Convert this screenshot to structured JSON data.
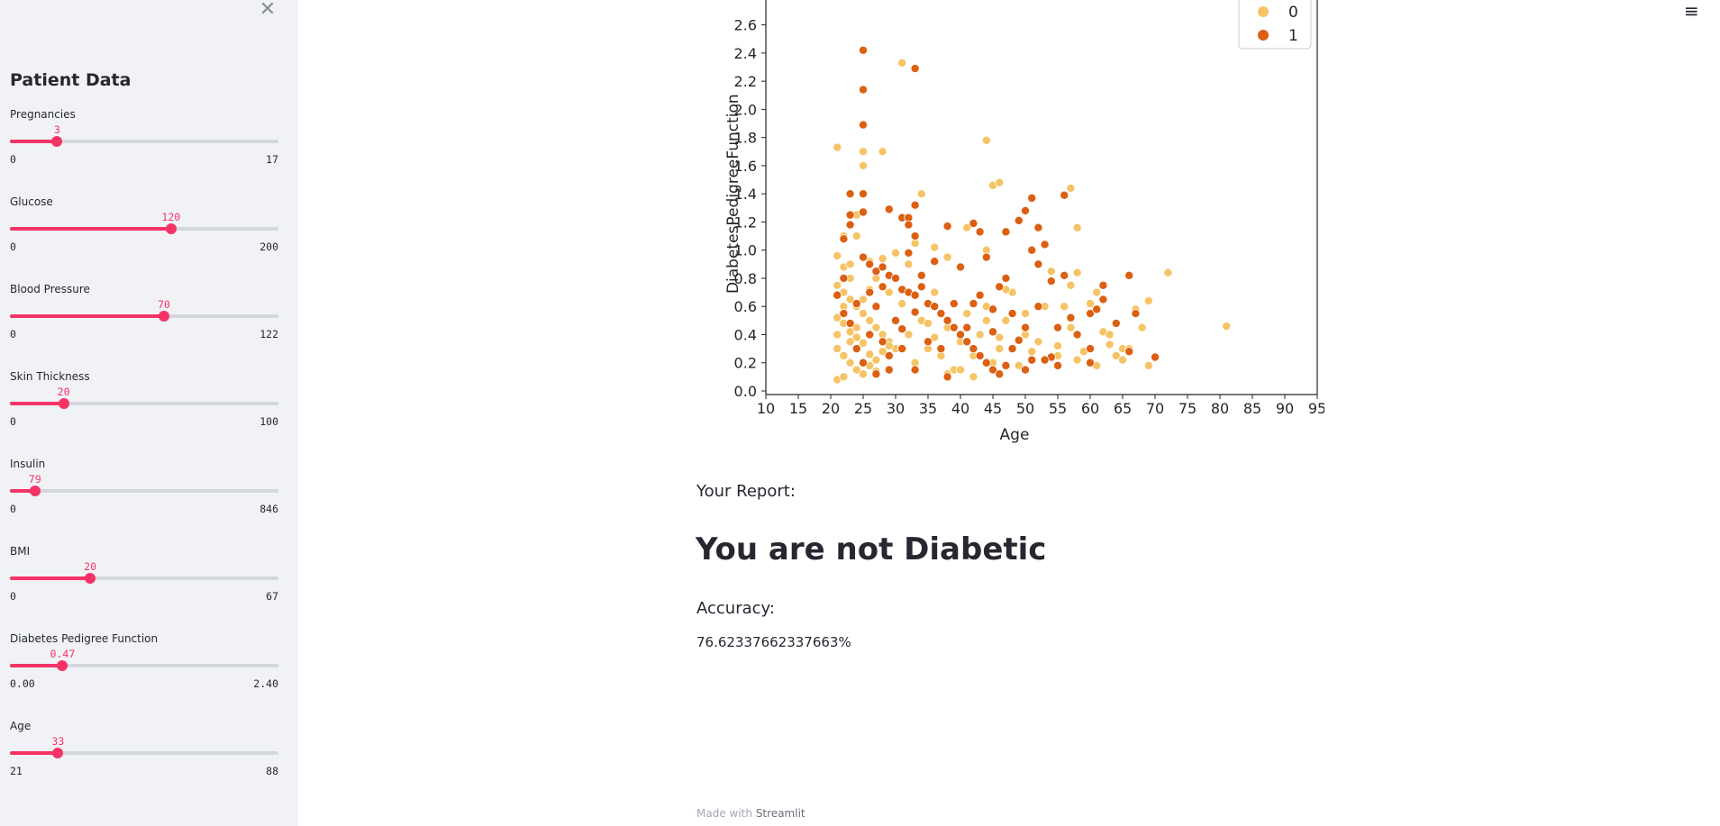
{
  "sidebar": {
    "title": "Patient Data",
    "sliders": [
      {
        "label": "Pregnancies",
        "value": "3",
        "min": "0",
        "max": "17",
        "fraction": 0.176
      },
      {
        "label": "Glucose",
        "value": "120",
        "min": "0",
        "max": "200",
        "fraction": 0.6
      },
      {
        "label": "Blood Pressure",
        "value": "70",
        "min": "0",
        "max": "122",
        "fraction": 0.574
      },
      {
        "label": "Skin Thickness",
        "value": "20",
        "min": "0",
        "max": "100",
        "fraction": 0.2
      },
      {
        "label": "Insulin",
        "value": "79",
        "min": "0",
        "max": "846",
        "fraction": 0.093
      },
      {
        "label": "BMI",
        "value": "20",
        "min": "0",
        "max": "67",
        "fraction": 0.299
      },
      {
        "label": "Diabetes Pedigree Function",
        "value": "0.47",
        "min": "0.00",
        "max": "2.40",
        "fraction": 0.196
      },
      {
        "label": "Age",
        "value": "33",
        "min": "21",
        "max": "88",
        "fraction": 0.179
      }
    ]
  },
  "colors": {
    "accent": "#f63366",
    "class0": "#f6c466",
    "class1": "#dc5f12"
  },
  "main": {
    "report_label": "Your Report:",
    "result": "You are not Diabetic",
    "accuracy_label": "Accuracy:",
    "accuracy_value": "76.62337662337663%"
  },
  "footer": {
    "prefix": "Made with",
    "brand": "Streamlit"
  },
  "chart_data": {
    "type": "scatter",
    "xlabel": "Age",
    "ylabel": "DiabetesPedigreeFunction",
    "xlim": [
      10,
      95
    ],
    "ylim": [
      0,
      2.7
    ],
    "xticks": [
      "10",
      "15",
      "20",
      "25",
      "30",
      "35",
      "40",
      "45",
      "50",
      "55",
      "60",
      "65",
      "70",
      "75",
      "80",
      "85",
      "90",
      "95"
    ],
    "yticks": [
      "0.0",
      "0.2",
      "0.4",
      "0.6",
      "0.8",
      "1.0",
      "1.2",
      "1.4",
      "1.6",
      "1.8",
      "2.0",
      "2.2",
      "2.4",
      "2.6"
    ],
    "legend": [
      "0",
      "1"
    ],
    "legend_position": "upper-right",
    "series": [
      {
        "name": "0",
        "points": [
          [
            21,
            1.73
          ],
          [
            25,
            1.7
          ],
          [
            25,
            1.6
          ],
          [
            28,
            1.7
          ],
          [
            31,
            2.33
          ],
          [
            44,
            1.78
          ],
          [
            45,
            1.46
          ],
          [
            46,
            1.48
          ],
          [
            57,
            1.44
          ],
          [
            56,
            1.39
          ],
          [
            58,
            1.16
          ],
          [
            34,
            1.4
          ],
          [
            24,
            1.25
          ],
          [
            22,
            1.1
          ],
          [
            24,
            1.1
          ],
          [
            21,
            0.96
          ],
          [
            22,
            0.88
          ],
          [
            23,
            0.9
          ],
          [
            26,
            0.92
          ],
          [
            28,
            0.94
          ],
          [
            30,
            0.98
          ],
          [
            33,
            1.05
          ],
          [
            36,
            1.02
          ],
          [
            38,
            0.95
          ],
          [
            41,
            1.16
          ],
          [
            44,
            1.0
          ],
          [
            21,
            0.75
          ],
          [
            22,
            0.7
          ],
          [
            23,
            0.65
          ],
          [
            24,
            0.6
          ],
          [
            25,
            0.55
          ],
          [
            26,
            0.5
          ],
          [
            27,
            0.45
          ],
          [
            28,
            0.4
          ],
          [
            29,
            0.35
          ],
          [
            30,
            0.3
          ],
          [
            21,
            0.3
          ],
          [
            22,
            0.25
          ],
          [
            23,
            0.2
          ],
          [
            24,
            0.15
          ],
          [
            25,
            0.12
          ],
          [
            26,
            0.18
          ],
          [
            27,
            0.22
          ],
          [
            28,
            0.28
          ],
          [
            29,
            0.32
          ],
          [
            21,
            0.52
          ],
          [
            22,
            0.48
          ],
          [
            23,
            0.42
          ],
          [
            24,
            0.38
          ],
          [
            25,
            0.34
          ],
          [
            26,
            0.26
          ],
          [
            27,
            0.14
          ],
          [
            21,
            0.08
          ],
          [
            22,
            0.1
          ],
          [
            23,
            0.35
          ],
          [
            24,
            0.45
          ],
          [
            25,
            0.65
          ],
          [
            26,
            0.72
          ],
          [
            27,
            0.8
          ],
          [
            21,
            0.4
          ],
          [
            22,
            0.6
          ],
          [
            23,
            0.8
          ],
          [
            31,
            0.62
          ],
          [
            32,
            0.4
          ],
          [
            33,
            0.2
          ],
          [
            34,
            0.5
          ],
          [
            35,
            0.3
          ],
          [
            36,
            0.7
          ],
          [
            37,
            0.25
          ],
          [
            38,
            0.45
          ],
          [
            39,
            0.15
          ],
          [
            40,
            0.35
          ],
          [
            41,
            0.55
          ],
          [
            42,
            0.25
          ],
          [
            43,
            0.4
          ],
          [
            44,
            0.6
          ],
          [
            45,
            0.2
          ],
          [
            46,
            0.3
          ],
          [
            47,
            0.5
          ],
          [
            48,
            0.7
          ],
          [
            49,
            0.18
          ],
          [
            50,
            0.4
          ],
          [
            51,
            0.28
          ],
          [
            52,
            0.35
          ],
          [
            53,
            0.6
          ],
          [
            54,
            0.85
          ],
          [
            55,
            0.32
          ],
          [
            57,
            0.45
          ],
          [
            58,
            0.84
          ],
          [
            59,
            0.28
          ],
          [
            60,
            0.62
          ],
          [
            61,
            0.7
          ],
          [
            62,
            0.42
          ],
          [
            63,
            0.33
          ],
          [
            64,
            0.25
          ],
          [
            65,
            0.3
          ],
          [
            66,
            0.28
          ],
          [
            67,
            0.58
          ],
          [
            68,
            0.45
          ],
          [
            69,
            0.64
          ],
          [
            72,
            0.84
          ],
          [
            81,
            0.46
          ],
          [
            57,
            0.75
          ],
          [
            58,
            0.22
          ],
          [
            61,
            0.18
          ],
          [
            63,
            0.4
          ],
          [
            65,
            0.22
          ],
          [
            66,
            0.3
          ],
          [
            69,
            0.18
          ],
          [
            56,
            0.6
          ],
          [
            50,
            0.55
          ],
          [
            46,
            0.38
          ],
          [
            38,
            0.12
          ],
          [
            35,
            0.48
          ],
          [
            32,
            0.9
          ],
          [
            29,
            0.7
          ],
          [
            40,
            0.15
          ],
          [
            42,
            0.1
          ],
          [
            44,
            0.5
          ],
          [
            47,
            0.72
          ],
          [
            55,
            0.25
          ],
          [
            48,
            0.3
          ],
          [
            36,
            0.38
          ]
        ]
      },
      {
        "name": "1",
        "points": [
          [
            25,
            2.42
          ],
          [
            25,
            2.14
          ],
          [
            33,
            2.29
          ],
          [
            25,
            1.89
          ],
          [
            23,
            1.4
          ],
          [
            25,
            1.4
          ],
          [
            29,
            1.29
          ],
          [
            25,
            1.27
          ],
          [
            23,
            1.25
          ],
          [
            22,
            1.08
          ],
          [
            23,
            1.18
          ],
          [
            31,
            1.23
          ],
          [
            32,
            1.23
          ],
          [
            33,
            1.32
          ],
          [
            32,
            1.18
          ],
          [
            33,
            1.1
          ],
          [
            32,
            0.98
          ],
          [
            38,
            1.17
          ],
          [
            42,
            1.19
          ],
          [
            43,
            1.13
          ],
          [
            47,
            1.13
          ],
          [
            51,
            1.37
          ],
          [
            50,
            1.28
          ],
          [
            52,
            1.16
          ],
          [
            49,
            1.21
          ],
          [
            53,
            1.04
          ],
          [
            56,
            1.39
          ],
          [
            51,
            1.0
          ],
          [
            52,
            0.9
          ],
          [
            54,
            0.78
          ],
          [
            56,
            0.82
          ],
          [
            60,
            0.55
          ],
          [
            62,
            0.65
          ],
          [
            25,
            0.95
          ],
          [
            26,
            0.9
          ],
          [
            27,
            0.85
          ],
          [
            28,
            0.88
          ],
          [
            29,
            0.82
          ],
          [
            30,
            0.8
          ],
          [
            31,
            0.72
          ],
          [
            32,
            0.7
          ],
          [
            33,
            0.68
          ],
          [
            34,
            0.74
          ],
          [
            35,
            0.62
          ],
          [
            36,
            0.6
          ],
          [
            37,
            0.55
          ],
          [
            38,
            0.5
          ],
          [
            39,
            0.45
          ],
          [
            40,
            0.4
          ],
          [
            41,
            0.35
          ],
          [
            42,
            0.3
          ],
          [
            43,
            0.25
          ],
          [
            44,
            0.2
          ],
          [
            45,
            0.15
          ],
          [
            46,
            0.12
          ],
          [
            47,
            0.18
          ],
          [
            21,
            0.68
          ],
          [
            22,
            0.55
          ],
          [
            23,
            0.48
          ],
          [
            24,
            0.3
          ],
          [
            25,
            0.2
          ],
          [
            26,
            0.4
          ],
          [
            27,
            0.6
          ],
          [
            28,
            0.35
          ],
          [
            29,
            0.25
          ],
          [
            30,
            0.5
          ],
          [
            31,
            0.44
          ],
          [
            33,
            0.56
          ],
          [
            35,
            0.35
          ],
          [
            37,
            0.3
          ],
          [
            39,
            0.62
          ],
          [
            41,
            0.45
          ],
          [
            43,
            0.68
          ],
          [
            45,
            0.58
          ],
          [
            47,
            0.8
          ],
          [
            48,
            0.3
          ],
          [
            50,
            0.45
          ],
          [
            51,
            0.22
          ],
          [
            52,
            0.6
          ],
          [
            54,
            0.24
          ],
          [
            55,
            0.18
          ],
          [
            57,
            0.52
          ],
          [
            58,
            0.4
          ],
          [
            60,
            0.3
          ],
          [
            61,
            0.58
          ],
          [
            62,
            0.75
          ],
          [
            64,
            0.48
          ],
          [
            66,
            0.28
          ],
          [
            67,
            0.55
          ],
          [
            70,
            0.24
          ],
          [
            66,
            0.82
          ],
          [
            44,
            0.95
          ],
          [
            40,
            0.88
          ],
          [
            36,
            0.92
          ],
          [
            34,
            0.82
          ],
          [
            28,
            0.74
          ],
          [
            26,
            0.7
          ],
          [
            24,
            0.62
          ],
          [
            22,
            0.8
          ],
          [
            38,
            0.1
          ],
          [
            45,
            0.42
          ],
          [
            50,
            0.15
          ],
          [
            53,
            0.22
          ],
          [
            55,
            0.45
          ],
          [
            60,
            0.2
          ],
          [
            42,
            0.62
          ],
          [
            46,
            0.74
          ],
          [
            49,
            0.36
          ],
          [
            48,
            0.55
          ],
          [
            31,
            0.3
          ],
          [
            29,
            0.15
          ],
          [
            27,
            0.12
          ],
          [
            33,
            0.15
          ]
        ]
      }
    ]
  }
}
